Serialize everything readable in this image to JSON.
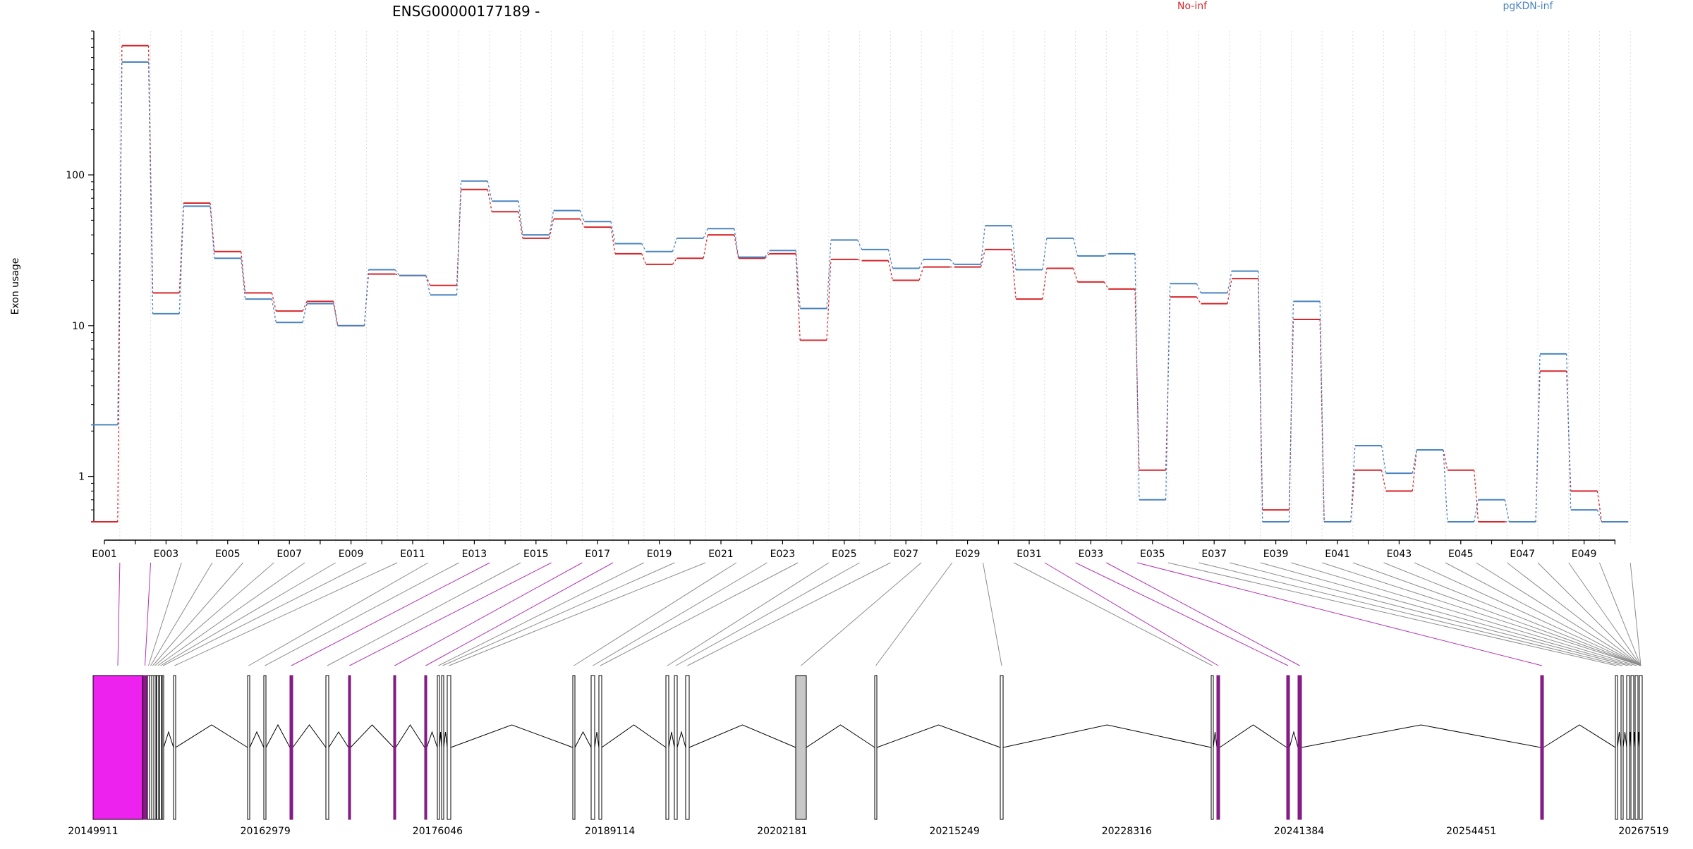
{
  "chart_data": {
    "type": "line",
    "title": "ENSG00000177189 -",
    "ylabel": "Exon usage",
    "yscale": "log",
    "ylim": [
      0.5,
      900
    ],
    "yticks": [
      1,
      10,
      100
    ],
    "ytick_labels": [
      "1",
      "10",
      "100"
    ],
    "legend": [
      "No-inf",
      "pgKDN-inf"
    ],
    "legend_placement": "top",
    "x_gridlines": true,
    "exon_labels": [
      "E001",
      "E003",
      "E005",
      "E007",
      "E009",
      "E011",
      "E013",
      "E015",
      "E017",
      "E019",
      "E021",
      "E023",
      "E025",
      "E027",
      "E029",
      "E031",
      "E033",
      "E035",
      "E037",
      "E039",
      "E041",
      "E043",
      "E045",
      "E047",
      "E049"
    ],
    "categories": [
      "E001",
      "E002",
      "E003",
      "E004",
      "E005",
      "E006",
      "E007",
      "E008",
      "E009",
      "E010",
      "E011",
      "E012",
      "E013",
      "E014",
      "E015",
      "E016",
      "E017",
      "E018",
      "E019",
      "E020",
      "E021",
      "E022",
      "E023",
      "E024",
      "E025",
      "E026",
      "E027",
      "E028",
      "E029",
      "E030",
      "E031",
      "E032",
      "E033",
      "E034",
      "E035",
      "E036",
      "E037",
      "E038",
      "E039",
      "E040",
      "E041",
      "E042",
      "E043",
      "E044",
      "E045",
      "E046",
      "E047",
      "E048",
      "E049",
      "E050"
    ],
    "series": [
      {
        "name": "No-inf",
        "color": "#d7262b",
        "values": [
          0.5,
          720,
          16.5,
          65,
          31,
          16.5,
          12.5,
          14.5,
          10,
          22,
          21.5,
          18.5,
          80,
          57,
          38,
          51,
          45,
          30,
          25.5,
          28,
          40,
          28,
          30,
          8,
          27.5,
          27,
          20,
          24.5,
          24.5,
          32,
          15,
          24,
          19.5,
          17.5,
          1.1,
          15.5,
          14,
          20.5,
          0.6,
          11,
          0.5,
          1.1,
          0.8,
          1.5,
          1.1,
          0.5,
          0.5,
          5,
          0.8,
          0.5
        ]
      },
      {
        "name": "pgKDN-inf",
        "color": "#4a84c0",
        "values": [
          2.2,
          560,
          12,
          62,
          28,
          15,
          10.5,
          14,
          10,
          23.5,
          21.5,
          16,
          91,
          67,
          40,
          58,
          49,
          35,
          31,
          38,
          44,
          28.5,
          31.5,
          13,
          37,
          32,
          24,
          27.5,
          25.5,
          46,
          23.5,
          38,
          29,
          30,
          0.7,
          19,
          16.5,
          23,
          0.5,
          14.5,
          0.5,
          1.6,
          1.05,
          1.5,
          0.5,
          0.7,
          0.5,
          6.5,
          0.6,
          0.5
        ]
      }
    ],
    "x_coordinates": [
      "20149911",
      "20162979",
      "20176046",
      "20189114",
      "20202181",
      "20215249",
      "20228316",
      "20241384",
      "20254451",
      "20267519"
    ],
    "highlight_color": "#ee22ee",
    "highlighted_exons": [
      "E001",
      "E002",
      "E013",
      "E015",
      "E016",
      "E017",
      "E031",
      "E032",
      "E033",
      "E034"
    ],
    "exon_fill_color": "#c8c8c8",
    "intron_color": "#000000"
  }
}
